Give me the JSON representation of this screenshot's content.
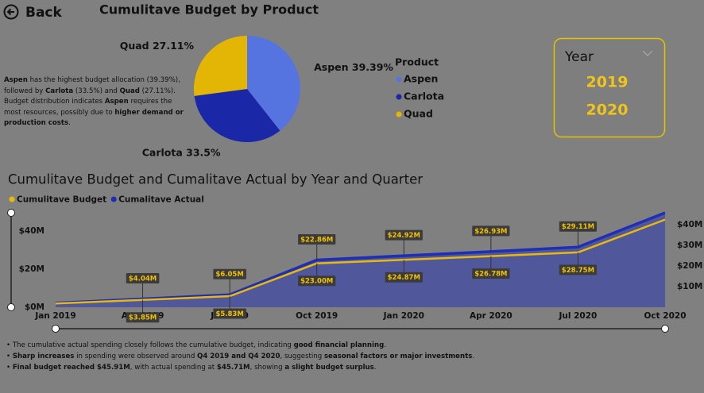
{
  "header": {
    "back": "Back"
  },
  "chart_data": [
    {
      "type": "pie",
      "title": "Cumulitave Budget by Product",
      "legend_title": "Product",
      "categories": [
        "Aspen",
        "Carlota",
        "Quad"
      ],
      "values": [
        39.39,
        33.5,
        27.11
      ],
      "value_labels": [
        "Aspen 39.39%",
        "Carlota 33.5%",
        "Quad 27.11%"
      ],
      "colors": [
        "#5574e0",
        "#1a27a6",
        "#e3b505"
      ],
      "legend": "right"
    },
    {
      "type": "line",
      "title": "Cumulitave Budget and Cumalitave Actual by Year and Quarter",
      "categories": [
        "Jan 2019",
        "Apr 2019",
        "Jul 2019",
        "Oct 2019",
        "Jan 2020",
        "Apr 2020",
        "Jul 2020",
        "Oct 2020"
      ],
      "series": [
        {
          "name": "Cumulitave Budget",
          "color": "#e8b90a",
          "values": [
            2,
            3.85,
            5.83,
            23.0,
            24.87,
            26.78,
            28.75,
            45.91
          ],
          "value_labels": [
            null,
            "$3.85M",
            "$5.83M",
            "$23.00M",
            "$24.87M",
            "$26.78M",
            "$28.75M",
            null
          ]
        },
        {
          "name": "Cumalitave Actual",
          "color": "#1f2fb5",
          "axis": "y2",
          "area": true,
          "values": [
            2,
            4.04,
            6.05,
            22.86,
            24.92,
            26.93,
            29.11,
            45.71
          ],
          "value_labels": [
            null,
            "$4.04M",
            "$6.05M",
            "$22.86M",
            "$24.92M",
            "$26.93M",
            "$29.11M",
            null
          ]
        }
      ],
      "ylim": [
        0,
        52
      ],
      "yticks": [
        {
          "value": 0,
          "label": "$0M"
        },
        {
          "value": 20,
          "label": "$20M"
        },
        {
          "value": 40,
          "label": "$40M"
        }
      ],
      "y2lim": [
        0,
        48
      ],
      "y2ticks": [
        {
          "value": 10,
          "label": "$10M"
        },
        {
          "value": 20,
          "label": "$20M"
        },
        {
          "value": 30,
          "label": "$30M"
        },
        {
          "value": 40,
          "label": "$40M"
        }
      ],
      "legend": "top-left"
    }
  ],
  "description": [
    [
      {
        "text": "Aspen",
        "bold": true
      },
      {
        "text": " has the highest budget allocation (39.39%), followed by ",
        "bold": false
      },
      {
        "text": "Carlota",
        "bold": true
      },
      {
        "text": " (33.5%) and ",
        "bold": false
      },
      {
        "text": "Quad",
        "bold": true
      },
      {
        "text": " (27.11%).",
        "bold": false
      }
    ],
    [
      {
        "text": "Budget distribution indicates ",
        "bold": false
      },
      {
        "text": "Aspen",
        "bold": true
      },
      {
        "text": " requires the most resources, possibly due to ",
        "bold": false
      },
      {
        "text": "higher demand or production costs",
        "bold": true
      },
      {
        "text": ".",
        "bold": false
      }
    ]
  ],
  "slicer": {
    "title": "Year",
    "items": [
      "2019",
      "2020"
    ]
  },
  "notes": [
    [
      {
        "text": "The cumulative actual spending closely follows the cumulative budget, indicating ",
        "bold": false
      },
      {
        "text": "good financial planning",
        "bold": true
      },
      {
        "text": ".",
        "bold": false
      }
    ],
    [
      {
        "text": "Sharp increases",
        "bold": true
      },
      {
        "text": " in spending were observed around ",
        "bold": false
      },
      {
        "text": "Q4 2019 and Q4 2020",
        "bold": true
      },
      {
        "text": ", suggesting ",
        "bold": false
      },
      {
        "text": "seasonal factors or major investments",
        "bold": true
      },
      {
        "text": ".",
        "bold": false
      }
    ],
    [
      {
        "text": "Final budget reached $45.91M",
        "bold": true
      },
      {
        "text": ", with actual spending at ",
        "bold": false
      },
      {
        "text": "$45.71M",
        "bold": true
      },
      {
        "text": ", showing ",
        "bold": false
      },
      {
        "text": "a slight budget surplus",
        "bold": true
      },
      {
        "text": ".",
        "bold": false
      }
    ]
  ]
}
